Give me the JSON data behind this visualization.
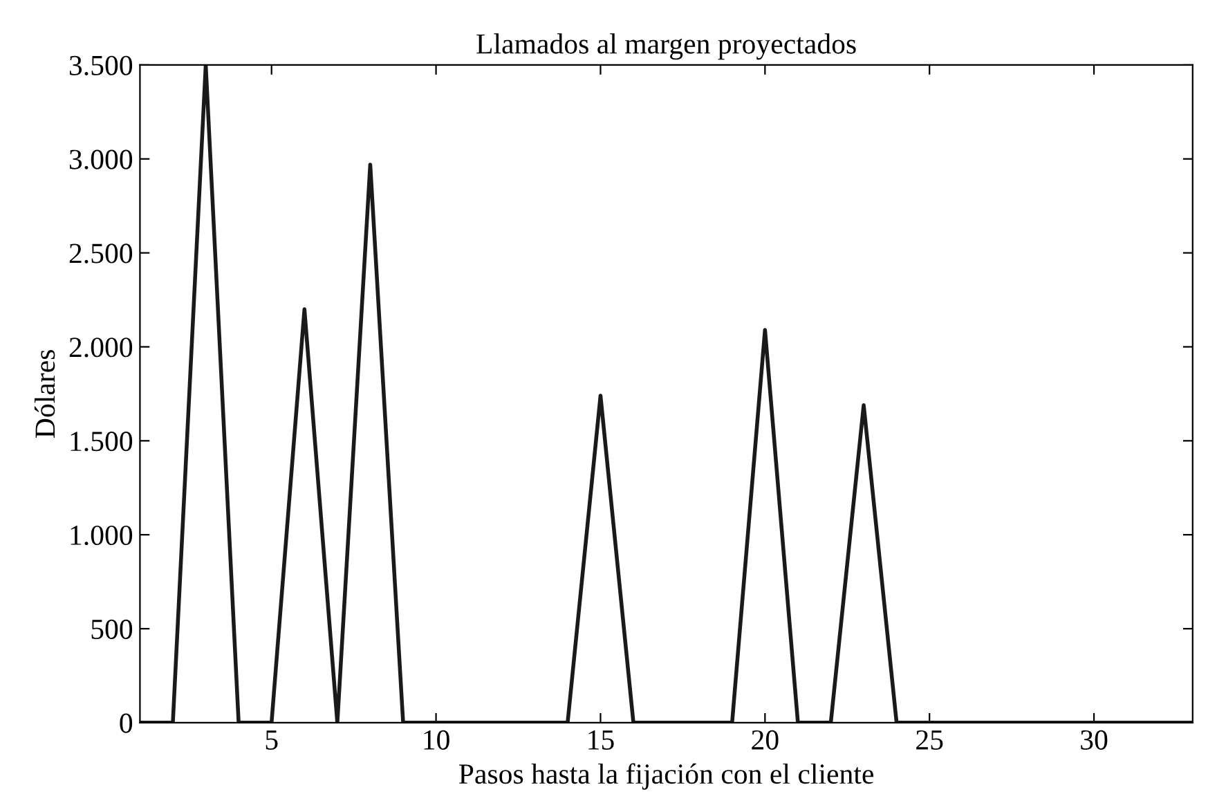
{
  "chart_data": {
    "type": "line",
    "title": "Llamados al margen proyectados",
    "xlabel": "Pasos hasta la fijación con el cliente",
    "ylabel": "Dólares",
    "x": [
      1,
      2,
      3,
      4,
      5,
      6,
      7,
      8,
      9,
      10,
      11,
      12,
      13,
      14,
      15,
      16,
      17,
      18,
      19,
      20,
      21,
      22,
      23,
      24,
      25,
      26,
      27,
      28,
      29,
      30,
      31,
      32,
      33
    ],
    "series": [
      {
        "color": "#1a1a1a",
        "values": [
          0,
          0,
          3500,
          0,
          0,
          2200,
          0,
          2970,
          0,
          0,
          0,
          0,
          0,
          0,
          1740,
          0,
          0,
          0,
          0,
          2090,
          0,
          0,
          1690,
          0,
          0,
          0,
          0,
          0,
          0,
          0,
          0,
          0,
          0
        ]
      }
    ],
    "xlim": [
      1,
      33
    ],
    "xticks": [
      5,
      10,
      15,
      20,
      25,
      30
    ],
    "ylim": [
      0,
      3500
    ],
    "yticks": [
      {
        "value": 0,
        "label": "0"
      },
      {
        "value": 500,
        "label": "500"
      },
      {
        "value": 1000,
        "label": "1.000"
      },
      {
        "value": 1500,
        "label": "1.500"
      },
      {
        "value": 2000,
        "label": "2.000"
      },
      {
        "value": 2500,
        "label": "2.500"
      },
      {
        "value": 3000,
        "label": "3.000"
      },
      {
        "value": 3500,
        "label": "3.500"
      }
    ],
    "grid": false,
    "legend": false,
    "marker": "none",
    "line_style": "solid"
  }
}
